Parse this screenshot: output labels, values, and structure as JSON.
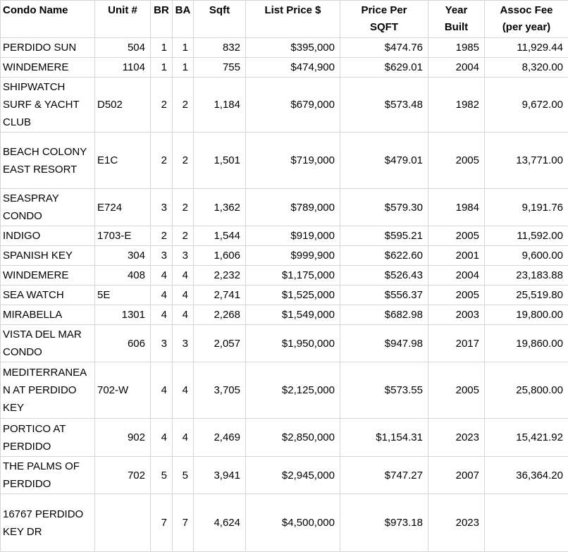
{
  "table": {
    "columns": [
      {
        "label": "Condo Name"
      },
      {
        "label": "Unit #"
      },
      {
        "label": "BR"
      },
      {
        "label": "BA"
      },
      {
        "label": "Sqft"
      },
      {
        "label": "List Price $"
      },
      {
        "label": "Price Per\nSQFT"
      },
      {
        "label": "Year\nBuilt"
      },
      {
        "label": "Assoc Fee\n(per year)"
      }
    ],
    "rows": [
      {
        "condo_name": "PERDIDO SUN",
        "unit": "504",
        "br": "1",
        "ba": "1",
        "sqft": "832",
        "list_price": "$395,000",
        "price_per_sqft": "$474.76",
        "year_built": "1985",
        "assoc_fee": "11,929.44",
        "h": 28
      },
      {
        "condo_name": "WINDEMERE",
        "unit": "1104",
        "br": "1",
        "ba": "1",
        "sqft": "755",
        "list_price": "$474,900",
        "price_per_sqft": "$629.01",
        "year_built": "2004",
        "assoc_fee": "8,320.00",
        "h": 27
      },
      {
        "condo_name": "SHIPWATCH SURF & YACHT CLUB",
        "unit": "D502",
        "br": "2",
        "ba": "2",
        "sqft": "1,184",
        "list_price": "$679,000",
        "price_per_sqft": "$573.48",
        "year_built": "1982",
        "assoc_fee": "9,672.00",
        "h": 77
      },
      {
        "condo_name": "BEACH COLONY EAST RESORT",
        "unit": "E1C",
        "br": "2",
        "ba": "2",
        "sqft": "1,501",
        "list_price": "$719,000",
        "price_per_sqft": "$479.01",
        "year_built": "2005",
        "assoc_fee": "13,771.00",
        "h": 80
      },
      {
        "condo_name": "SEASPRAY CONDO",
        "unit": "E724",
        "br": "3",
        "ba": "2",
        "sqft": "1,362",
        "list_price": "$789,000",
        "price_per_sqft": "$579.30",
        "year_built": "1984",
        "assoc_fee": "9,191.76",
        "h": 53
      },
      {
        "condo_name": "INDIGO",
        "unit": "1703-E",
        "br": "2",
        "ba": "2",
        "sqft": "1,544",
        "list_price": "$919,000",
        "price_per_sqft": "$595.21",
        "year_built": "2005",
        "assoc_fee": "11,592.00",
        "h": 27
      },
      {
        "condo_name": "SPANISH KEY",
        "unit": "304",
        "br": "3",
        "ba": "3",
        "sqft": "1,606",
        "list_price": "$999,900",
        "price_per_sqft": "$622.60",
        "year_built": "2001",
        "assoc_fee": "9,600.00",
        "h": 27
      },
      {
        "condo_name": "WINDEMERE",
        "unit": "408",
        "br": "4",
        "ba": "4",
        "sqft": "2,232",
        "list_price": "$1,175,000",
        "price_per_sqft": "$526.43",
        "year_built": "2004",
        "assoc_fee": "23,183.88",
        "h": 27
      },
      {
        "condo_name": "SEA WATCH",
        "unit": "5E",
        "br": "4",
        "ba": "4",
        "sqft": "2,741",
        "list_price": "$1,525,000",
        "price_per_sqft": "$556.37",
        "year_built": "2005",
        "assoc_fee": "25,519.80",
        "h": 27
      },
      {
        "condo_name": "MIRABELLA",
        "unit": "1301",
        "br": "4",
        "ba": "4",
        "sqft": "2,268",
        "list_price": "$1,549,000",
        "price_per_sqft": "$682.98",
        "year_built": "2003",
        "assoc_fee": "19,800.00",
        "h": 27
      },
      {
        "condo_name": "VISTA DEL MAR CONDO",
        "unit": "606",
        "br": "3",
        "ba": "3",
        "sqft": "2,057",
        "list_price": "$1,950,000",
        "price_per_sqft": "$947.98",
        "year_built": "2017",
        "assoc_fee": "19,860.00",
        "h": 53
      },
      {
        "condo_name": "MEDITERRANEAN AT PERDIDO KEY",
        "unit": "702-W",
        "br": "4",
        "ba": "4",
        "sqft": "3,705",
        "list_price": "$2,125,000",
        "price_per_sqft": "$573.55",
        "year_built": "2005",
        "assoc_fee": "25,800.00",
        "h": 80
      },
      {
        "condo_name": "PORTICO AT PERDIDO",
        "unit": "902",
        "br": "4",
        "ba": "4",
        "sqft": "2,469",
        "list_price": "$2,850,000",
        "price_per_sqft": "$1,154.31",
        "year_built": "2023",
        "assoc_fee": "15,421.92",
        "h": 54
      },
      {
        "condo_name": "THE PALMS OF PERDIDO",
        "unit": "702",
        "br": "5",
        "ba": "5",
        "sqft": "3,941",
        "list_price": "$2,945,000",
        "price_per_sqft": "$747.27",
        "year_built": "2007",
        "assoc_fee": "36,364.20",
        "h": 53
      },
      {
        "condo_name": "16767 PERDIDO KEY DR",
        "unit": "",
        "br": "7",
        "ba": "7",
        "sqft": "4,624",
        "list_price": "$4,500,000",
        "price_per_sqft": "$973.18",
        "year_built": "2023",
        "assoc_fee": "",
        "h": 82
      }
    ]
  }
}
